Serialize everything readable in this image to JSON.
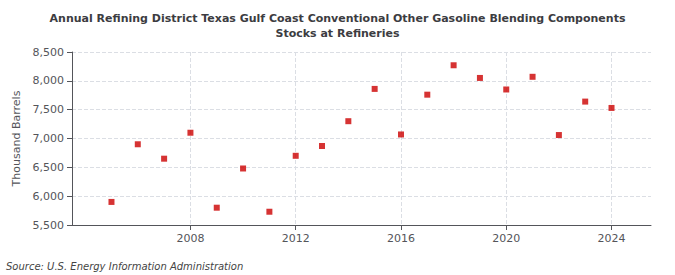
{
  "chart_data": {
    "type": "scatter",
    "title": "Annual Refining District Texas Gulf Coast Conventional Other Gasoline Blending Components\nStocks at Refineries",
    "ylabel": "Thousand Barrels",
    "annotation": "Source: U.S. Energy Information Administration",
    "x": [
      2005,
      2006,
      2007,
      2008,
      2009,
      2010,
      2011,
      2012,
      2013,
      2014,
      2015,
      2016,
      2017,
      2018,
      2019,
      2020,
      2021,
      2022,
      2023,
      2024
    ],
    "values": [
      5900,
      6900,
      6650,
      7100,
      5800,
      6480,
      5730,
      6700,
      6870,
      7300,
      7860,
      7070,
      7760,
      8270,
      8050,
      7850,
      8070,
      7060,
      7640,
      7530
    ],
    "color": "#cc0000",
    "marker": "square",
    "grid": true,
    "ylim": [
      5500,
      8500
    ],
    "yticks": [
      {
        "value": 5500,
        "label": "5,500"
      },
      {
        "value": 6000,
        "label": "6,000"
      },
      {
        "value": 6500,
        "label": "6,500"
      },
      {
        "value": 7000,
        "label": "7,000"
      },
      {
        "value": 7500,
        "label": "7,500"
      },
      {
        "value": 8000,
        "label": "8,000"
      },
      {
        "value": 8500,
        "label": "8,500"
      }
    ],
    "xlim": [
      2003.5,
      2025.5
    ],
    "xticks": [
      2008,
      2012,
      2016,
      2020,
      2024
    ]
  }
}
